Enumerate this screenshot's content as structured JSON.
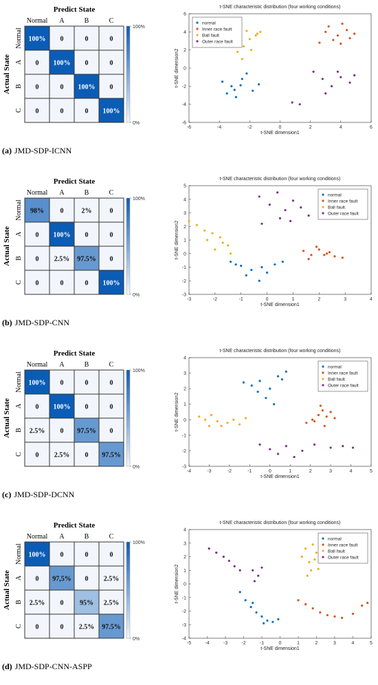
{
  "chart_data": [
    {
      "type": "heatmap",
      "title": "Predict State",
      "y_label": "Actual State",
      "caption_label": "(a)",
      "caption": "JMD-SDP-ICNN",
      "x_categories": [
        "Normal",
        "A",
        "B",
        "C"
      ],
      "y_categories": [
        "Normal",
        "A",
        "B",
        "C"
      ],
      "values": [
        [
          100,
          0,
          0,
          0
        ],
        [
          0,
          100,
          0,
          0
        ],
        [
          0,
          0,
          100,
          0
        ],
        [
          0,
          0,
          0,
          100
        ]
      ],
      "value_labels": [
        [
          "100%",
          "0",
          "0",
          "0"
        ],
        [
          "0",
          "100%",
          "0",
          "0"
        ],
        [
          "0",
          "0",
          "100%",
          "0"
        ],
        [
          "0",
          "0",
          "0",
          "100%"
        ]
      ],
      "cmap": [
        "#f2f6fc",
        "#0b5cb5"
      ],
      "clim": [
        0,
        100
      ],
      "cticks": [
        {
          "value": 0,
          "label": "0%"
        },
        {
          "value": 100,
          "label": "100%"
        }
      ]
    },
    {
      "type": "scatter",
      "title": "t-SNE characteristic distribution (four working conditions)",
      "x_label": "t-SNE dimension1",
      "y_label": "t-SNE dimension2",
      "xlim": [
        -6,
        6
      ],
      "xticks": [
        -6,
        -4,
        -2,
        0,
        2,
        4,
        6
      ],
      "ylim": [
        -6,
        6
      ],
      "yticks": [
        -6,
        -4,
        -2,
        0,
        2,
        4,
        6
      ],
      "legend": "upper left",
      "series": [
        {
          "name": "normal",
          "color": "#0072bd",
          "x": [
            -3.8,
            -3.2,
            -2.5,
            -1.8,
            -3.5,
            -2.9,
            -2.2,
            -1.4,
            -3.0,
            -2.6
          ],
          "y": [
            -1.5,
            -2.0,
            -1.2,
            -2.5,
            -2.8,
            -3.2,
            -0.6,
            -1.8,
            -2.4,
            -1.9
          ]
        },
        {
          "name": "Inner race fault",
          "color": "#d95319",
          "x": [
            2.6,
            3.2,
            3.8,
            4.4,
            4.9,
            3.5,
            4.1,
            4.6,
            3.0,
            4.0
          ],
          "y": [
            2.8,
            4.6,
            3.6,
            4.2,
            3.8,
            3.1,
            4.9,
            3.3,
            4.0,
            2.7
          ]
        },
        {
          "name": "Ball fault",
          "color": "#edb120",
          "x": [
            -2.8,
            -2.4,
            -2.0,
            -1.6,
            -1.3,
            -2.6,
            -2.2,
            -1.9,
            -2.5,
            -1.5
          ],
          "y": [
            1.8,
            2.4,
            3.2,
            3.6,
            4.0,
            3.0,
            4.1,
            2.0,
            1.0,
            3.8
          ]
        },
        {
          "name": "Outer race fault",
          "color": "#7e2f8e",
          "x": [
            2.2,
            2.8,
            3.4,
            4.0,
            4.6,
            4.9,
            3.0,
            3.8,
            0.8,
            1.3
          ],
          "y": [
            -0.4,
            -1.2,
            -2.0,
            -1.0,
            -1.6,
            -0.8,
            -2.8,
            -0.4,
            -3.8,
            -4.0
          ]
        }
      ]
    },
    {
      "type": "heatmap",
      "title": "Predict State",
      "y_label": "Actual State",
      "caption_label": "(b)",
      "caption": "JMD-SDP-CNN",
      "x_categories": [
        "Normal",
        "A",
        "B",
        "C"
      ],
      "y_categories": [
        "Normal",
        "A",
        "B",
        "C"
      ],
      "values": [
        [
          98,
          0,
          2,
          0
        ],
        [
          0,
          100,
          0,
          0
        ],
        [
          0,
          2.5,
          97.5,
          0
        ],
        [
          0,
          0,
          0,
          100
        ]
      ],
      "value_labels": [
        [
          "98%",
          "0",
          "2%",
          "0"
        ],
        [
          "0",
          "100%",
          "0",
          "0"
        ],
        [
          "0",
          "2.5%",
          "97.5%",
          "0"
        ],
        [
          "0",
          "0",
          "0",
          "100%"
        ]
      ],
      "cmap": [
        "#f2f6fc",
        "#0b5cb5"
      ],
      "clim": [
        0,
        100
      ],
      "cticks": [
        {
          "value": 0,
          "label": "0%"
        },
        {
          "value": 100,
          "label": "100%"
        }
      ]
    },
    {
      "type": "scatter",
      "title": "t-SNE characteristic distribution (four working conditions)",
      "x_label": "t-SNE dimension1",
      "y_label": "t-SNE dimension2",
      "xlim": [
        -3,
        4
      ],
      "xticks": [
        -3,
        -2,
        -1,
        0,
        1,
        2,
        3,
        4
      ],
      "ylim": [
        -3,
        5
      ],
      "yticks": [
        -3,
        -2,
        -1,
        0,
        1,
        2,
        3,
        4,
        5
      ],
      "legend": "upper right",
      "series": [
        {
          "name": "normal",
          "color": "#0072bd",
          "x": [
            -1.4,
            -1.0,
            -0.6,
            -0.2,
            0.3,
            0.6,
            -0.8,
            -0.3,
            0.0,
            -1.2
          ],
          "y": [
            -0.6,
            -0.9,
            -1.2,
            -1.0,
            -0.8,
            -0.6,
            -1.6,
            -2.0,
            -1.4,
            -0.8
          ]
        },
        {
          "name": "Inner race fault",
          "color": "#d95319",
          "x": [
            1.4,
            1.7,
            2.0,
            2.3,
            2.6,
            2.9,
            1.9,
            2.4,
            1.6,
            2.2
          ],
          "y": [
            0.2,
            -0.1,
            0.3,
            0.0,
            -0.2,
            -0.3,
            0.5,
            0.1,
            -0.4,
            -0.1
          ]
        },
        {
          "name": "Ball fault",
          "color": "#edb120",
          "x": [
            -3.0,
            -2.7,
            -2.4,
            -2.1,
            -1.8,
            -1.5,
            -2.0,
            -1.7,
            -1.4,
            -2.3
          ],
          "y": [
            2.4,
            2.1,
            1.7,
            1.5,
            1.2,
            0.6,
            0.3,
            0.8,
            0.0,
            1.0
          ]
        },
        {
          "name": "Outer race fault",
          "color": "#7e2f8e",
          "x": [
            -0.3,
            0.1,
            0.4,
            0.7,
            1.0,
            1.3,
            1.6,
            0.5,
            0.9,
            -0.2
          ],
          "y": [
            4.2,
            3.6,
            4.5,
            3.2,
            3.9,
            3.4,
            2.8,
            2.6,
            2.4,
            2.2
          ]
        }
      ]
    },
    {
      "type": "heatmap",
      "title": "Predict State",
      "y_label": "Actual State",
      "caption_label": "(c)",
      "caption": "JMD-SDP-DCNN",
      "x_categories": [
        "Normal",
        "A",
        "B",
        "C"
      ],
      "y_categories": [
        "Normal",
        "A",
        "B",
        "C"
      ],
      "values": [
        [
          100,
          0,
          0,
          0
        ],
        [
          0,
          100,
          0,
          0
        ],
        [
          2.5,
          0,
          97.5,
          0
        ],
        [
          0,
          2.5,
          0,
          97.5
        ]
      ],
      "value_labels": [
        [
          "100%",
          "0",
          "0",
          "0"
        ],
        [
          "0",
          "100%",
          "0",
          "0"
        ],
        [
          "2.5%",
          "0",
          "97.5%",
          "0"
        ],
        [
          "0",
          "2.5%",
          "0",
          "97.5%"
        ]
      ],
      "cmap": [
        "#f2f6fc",
        "#0b5cb5"
      ],
      "clim": [
        0,
        100
      ],
      "cticks": [
        {
          "value": 0,
          "label": "0%"
        },
        {
          "value": 100,
          "label": "100%"
        }
      ]
    },
    {
      "type": "scatter",
      "title": "t-SNE characteristic distribution (four working conditions)",
      "x_label": "t-SNE dimension1",
      "y_label": "t-SNE dimension2",
      "xlim": [
        -4,
        5
      ],
      "xticks": [
        -4,
        -3,
        -2,
        -1,
        0,
        1,
        2,
        3,
        4,
        5
      ],
      "ylim": [
        -3,
        4
      ],
      "yticks": [
        -3,
        -2,
        -1,
        0,
        1,
        2,
        3,
        4
      ],
      "legend": "upper right",
      "series": [
        {
          "name": "normal",
          "color": "#0072bd",
          "x": [
            -1.3,
            -0.9,
            -0.5,
            0.0,
            0.4,
            0.8,
            -0.2,
            0.2,
            -0.6,
            0.6
          ],
          "y": [
            2.4,
            2.2,
            2.5,
            2.0,
            2.8,
            3.1,
            1.4,
            1.0,
            1.8,
            2.6
          ]
        },
        {
          "name": "Inner race fault",
          "color": "#d95319",
          "x": [
            1.8,
            2.1,
            2.4,
            2.6,
            2.8,
            3.0,
            3.2,
            2.5,
            2.7,
            2.2
          ],
          "y": [
            -0.2,
            0.0,
            0.3,
            0.6,
            0.2,
            0.5,
            0.1,
            0.9,
            -0.4,
            -0.1
          ]
        },
        {
          "name": "Ball fault",
          "color": "#edb120",
          "x": [
            -3.5,
            -3.2,
            -2.9,
            -2.6,
            -2.4,
            -2.1,
            -1.8,
            -1.5,
            -1.2,
            -3.0
          ],
          "y": [
            0.2,
            0.0,
            0.3,
            -0.1,
            -0.4,
            -0.2,
            0.0,
            -0.3,
            0.1,
            -0.4
          ]
        },
        {
          "name": "Outer race fault",
          "color": "#7e2f8e",
          "x": [
            -0.5,
            0.0,
            0.4,
            0.8,
            1.2,
            1.6,
            2.2,
            3.0,
            3.6,
            4.1
          ],
          "y": [
            -1.6,
            -1.9,
            -2.2,
            -1.7,
            -2.4,
            -2.0,
            -1.6,
            -1.8,
            -1.7,
            -1.8
          ]
        }
      ]
    },
    {
      "type": "heatmap",
      "title": "Predict State",
      "y_label": "Actual State",
      "caption_label": "(d)",
      "caption": "JMD-SDP-CNN-ASPP",
      "x_categories": [
        "Normal",
        "A",
        "B",
        "C"
      ],
      "y_categories": [
        "Normal",
        "A",
        "B",
        "C"
      ],
      "values": [
        [
          100,
          0,
          0,
          0
        ],
        [
          0,
          97.5,
          0,
          2.5
        ],
        [
          2.5,
          0,
          95,
          2.5
        ],
        [
          0,
          0,
          2.5,
          97.5
        ]
      ],
      "value_labels": [
        [
          "100%",
          "0",
          "0",
          "0"
        ],
        [
          "0",
          "97,5%",
          "0",
          "2.5%"
        ],
        [
          "2.5%",
          "0",
          "95%",
          "2.5%"
        ],
        [
          "0",
          "0",
          "2.5%",
          "97.5%"
        ]
      ],
      "cmap": [
        "#f2f6fc",
        "#0b5cb5"
      ],
      "clim": [
        0,
        100
      ],
      "cticks": [
        {
          "value": 0,
          "label": "0%"
        },
        {
          "value": 100,
          "label": "100%"
        }
      ]
    },
    {
      "type": "scatter",
      "title": "t-SNE characteristic distribution (four working conditions)",
      "x_label": "t-SNE dimension1",
      "y_label": "t-SNE dimension2",
      "xlim": [
        -5,
        5
      ],
      "xticks": [
        -5,
        -4,
        -3,
        -2,
        -1,
        0,
        1,
        2,
        3,
        4,
        5
      ],
      "ylim": [
        -4,
        4
      ],
      "yticks": [
        -4,
        -3,
        -2,
        -1,
        0,
        1,
        2,
        3,
        4
      ],
      "legend": "upper right",
      "series": [
        {
          "name": "normal",
          "color": "#0072bd",
          "x": [
            -2.2,
            -1.9,
            -1.6,
            -1.3,
            -1.0,
            -0.7,
            -0.4,
            -0.1,
            -1.5,
            -0.9
          ],
          "y": [
            -0.6,
            -1.2,
            -1.7,
            -2.1,
            -2.4,
            -2.7,
            -2.8,
            -2.6,
            -1.4,
            -2.9
          ]
        },
        {
          "name": "Inner race fault",
          "color": "#d95319",
          "x": [
            1.0,
            1.4,
            1.8,
            2.2,
            2.6,
            3.0,
            3.4,
            4.0,
            4.5,
            4.8
          ],
          "y": [
            -1.2,
            -1.5,
            -1.8,
            -2.1,
            -2.3,
            -2.4,
            -2.5,
            -2.2,
            -1.6,
            -1.4
          ]
        },
        {
          "name": "Ball fault",
          "color": "#edb120",
          "x": [
            1.2,
            1.4,
            1.6,
            1.8,
            2.0,
            2.1,
            1.5,
            1.9,
            1.7,
            2.2
          ],
          "y": [
            2.0,
            2.6,
            1.6,
            2.9,
            2.3,
            1.1,
            0.6,
            1.8,
            1.0,
            2.6
          ]
        },
        {
          "name": "Outer race fault",
          "color": "#7e2f8e",
          "x": [
            -3.9,
            -3.5,
            -3.1,
            -2.8,
            -2.5,
            -2.2,
            -1.5,
            -1.2,
            -1.0,
            -1.4
          ],
          "y": [
            2.6,
            2.3,
            2.0,
            1.7,
            1.3,
            1.0,
            1.0,
            0.6,
            1.2,
            0.2
          ]
        }
      ]
    }
  ]
}
